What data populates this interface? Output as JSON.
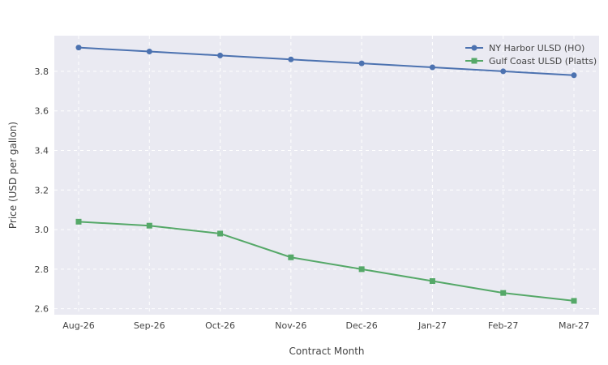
{
  "chart_data": {
    "type": "line",
    "title": "",
    "xlabel": "Contract Month",
    "ylabel": "Price (USD per gallon)",
    "categories": [
      "Aug-26",
      "Sep-26",
      "Oct-26",
      "Nov-26",
      "Dec-26",
      "Jan-27",
      "Feb-27",
      "Mar-27"
    ],
    "ylim": [
      2.57,
      3.98
    ],
    "yticks": [
      "2.6",
      "2.8",
      "3.0",
      "3.2",
      "3.4",
      "3.6",
      "3.8"
    ],
    "grid": true,
    "legend_position": "top-right",
    "plot_background": "#eaeaf2",
    "series": [
      {
        "name": "NY Harbor ULSD (HO)",
        "marker": "circle",
        "color": "#4c72b0",
        "values": [
          3.92,
          3.9,
          3.88,
          3.86,
          3.84,
          3.82,
          3.8,
          3.78
        ]
      },
      {
        "name": "Gulf Coast ULSD (Platts)",
        "marker": "square",
        "color": "#55a868",
        "values": [
          3.04,
          3.02,
          2.98,
          2.86,
          2.8,
          2.74,
          2.68,
          2.64
        ]
      }
    ]
  }
}
